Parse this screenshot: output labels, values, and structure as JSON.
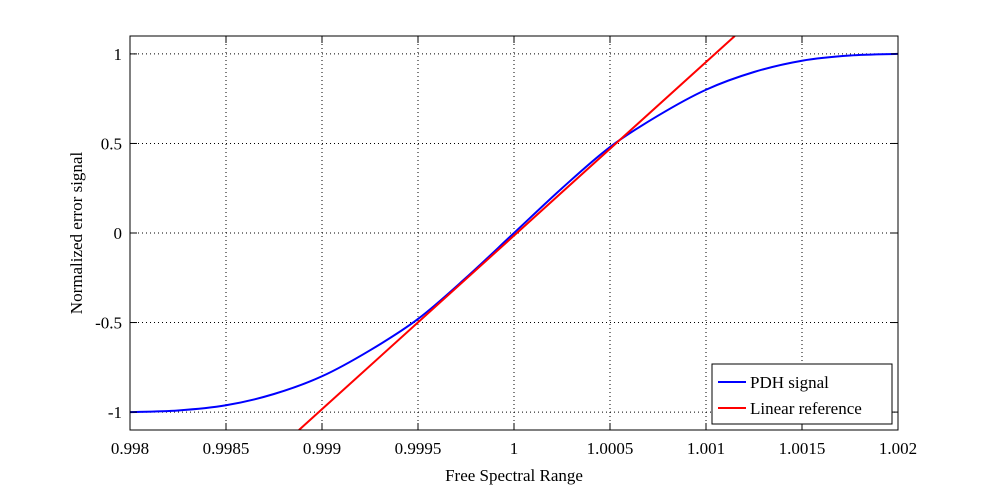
{
  "chart_data": {
    "type": "line",
    "title": "",
    "xlabel": "Free Spectral Range",
    "ylabel": "Normalized error signal",
    "xlim": [
      0.998,
      1.002
    ],
    "ylim": [
      -1.1,
      1.1
    ],
    "xticks": [
      0.998,
      0.9985,
      0.999,
      0.9995,
      1,
      1.0005,
      1.001,
      1.0015,
      1.002
    ],
    "xtick_labels": [
      "0.998",
      "0.9985",
      "0.999",
      "0.9995",
      "1",
      "1.0005",
      "1.001",
      "1.0015",
      "1.002"
    ],
    "yticks": [
      -1,
      -0.5,
      0,
      0.5,
      1
    ],
    "ytick_labels": [
      "-1",
      "-0.5",
      "0",
      "0.5",
      "1"
    ],
    "grid": true,
    "grid_style": "dotted",
    "legend_position": "bottom-right",
    "series": [
      {
        "name": "PDH signal",
        "color": "#0000ff",
        "x": [
          0.998,
          0.99825,
          0.9985,
          0.99875,
          0.999,
          0.99925,
          0.9995,
          0.99975,
          1.0,
          1.00025,
          1.0005,
          1.00075,
          1.001,
          1.00125,
          1.0015,
          1.00175,
          1.002
        ],
        "y": [
          -1.0,
          -0.991,
          -0.962,
          -0.899,
          -0.8,
          -0.655,
          -0.48,
          -0.25,
          0.0,
          0.25,
          0.48,
          0.655,
          0.8,
          0.899,
          0.962,
          0.991,
          1.0
        ]
      },
      {
        "name": "Linear reference",
        "color": "#ff0000",
        "x": [
          0.99888,
          1.00115
        ],
        "y": [
          -1.1,
          1.1
        ]
      }
    ]
  }
}
